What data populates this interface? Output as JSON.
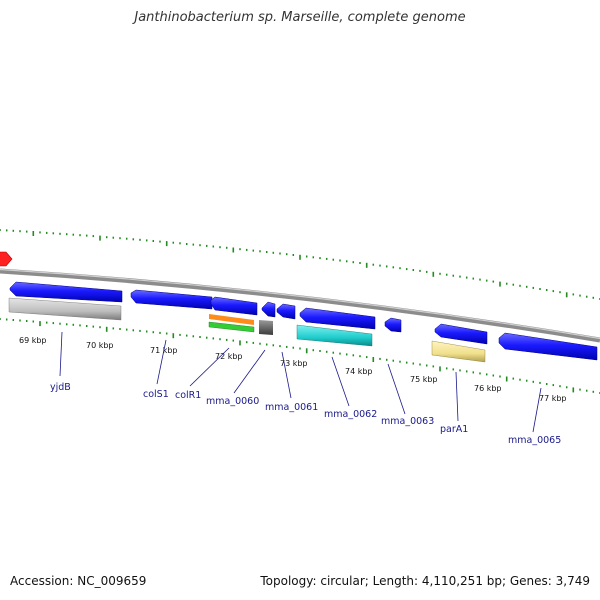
{
  "title": "Janthinobacterium sp. Marseille, complete genome",
  "accession": "Accession: NC_009659",
  "topology": "Topology: circular; Length: 4,110,251 bp; Genes: 3,749",
  "colors": {
    "gene_forward": "#1a1aff",
    "backbone": "#8c8c8c",
    "tick": "#228b22",
    "label": "#1a1a8c",
    "origin_marker": "#ff0000"
  },
  "kbp_labels": [
    "69 kbp",
    "70 kbp",
    "71 kbp",
    "72 kbp",
    "73 kbp",
    "74 kbp",
    "75 kbp",
    "76 kbp",
    "77 kbp"
  ],
  "gene_labels": [
    "yjdB",
    "colS1",
    "colR1",
    "mma_0060",
    "mma_0061",
    "mma_0062",
    "mma_0063",
    "parA1",
    "mma_0065"
  ]
}
